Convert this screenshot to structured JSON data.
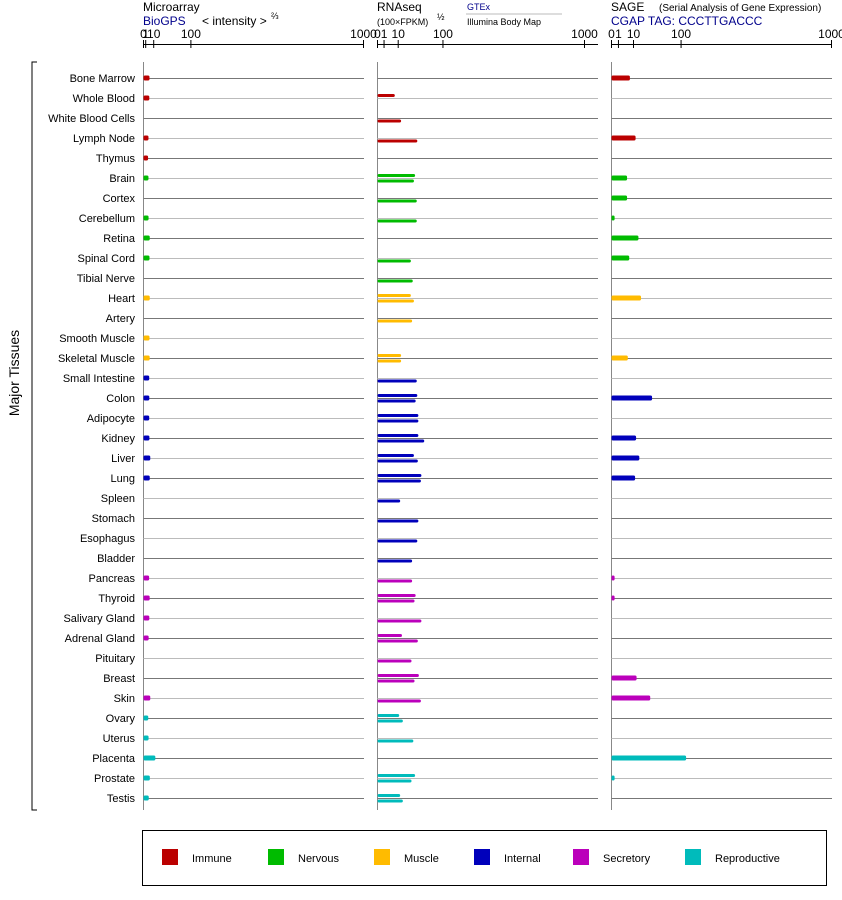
{
  "chart_data": {
    "type": "bar",
    "y_axis_label": "Major Tissues",
    "x_scale": "x^(2/3) (microarray) / x^(1/2) (RNAseq, SAGE)",
    "x_ticks": [
      "0",
      "1",
      "10",
      "100",
      "1000"
    ],
    "tissues": [
      "Bone Marrow",
      "Whole Blood",
      "White Blood Cells",
      "Lymph Node",
      "Thymus",
      "Brain",
      "Cortex",
      "Cerebellum",
      "Retina",
      "Spinal Cord",
      "Tibial Nerve",
      "Heart",
      "Artery",
      "Smooth Muscle",
      "Skeletal Muscle",
      "Small Intestine",
      "Colon",
      "Adipocyte",
      "Kidney",
      "Liver",
      "Lung",
      "Spleen",
      "Stomach",
      "Esophagus",
      "Bladder",
      "Pancreas",
      "Thyroid",
      "Salivary Gland",
      "Adrenal Gland",
      "Pituitary",
      "Breast",
      "Skin",
      "Ovary",
      "Uterus",
      "Placenta",
      "Prostate",
      "Testis"
    ],
    "categories": [
      "immune",
      "immune",
      "immune",
      "immune",
      "immune",
      "nervous",
      "nervous",
      "nervous",
      "nervous",
      "nervous",
      "nervous",
      "muscle",
      "muscle",
      "muscle",
      "muscle",
      "internal",
      "internal",
      "internal",
      "internal",
      "internal",
      "internal",
      "internal",
      "internal",
      "internal",
      "internal",
      "secretory",
      "secretory",
      "secretory",
      "secretory",
      "secretory",
      "secretory",
      "secretory",
      "reproductive",
      "reproductive",
      "reproductive",
      "reproductive",
      "reproductive"
    ],
    "colors": {
      "immune": "#bb0000",
      "nervous": "#00bb00",
      "muscle": "#ffbb00",
      "internal": "#0000bb",
      "secretory": "#bb00bb",
      "reproductive": "#00bbbb"
    },
    "panels": [
      {
        "id": "microarray",
        "title": "Microarray",
        "subtitle": "BioGPS",
        "scale_label": "< intensity >",
        "scale_exponent": "⅔",
        "scale": "pow23",
        "values": [
          [
            4.5
          ],
          [
            4.3
          ],
          [
            null
          ],
          [
            3.4
          ],
          [
            3.0
          ],
          [
            3.4
          ],
          [
            null
          ],
          [
            3.5
          ],
          [
            4.8
          ],
          [
            4.5
          ],
          [
            null
          ],
          [
            4.8
          ],
          [
            null
          ],
          [
            4.5
          ],
          [
            4.7
          ],
          [
            4.2
          ],
          [
            4.3
          ],
          [
            4.2
          ],
          [
            4.4
          ],
          [
            5.4
          ],
          [
            4.8
          ],
          [
            null
          ],
          [
            null
          ],
          [
            null
          ],
          [
            null
          ],
          [
            4.1
          ],
          [
            4.7
          ],
          [
            4.3
          ],
          [
            3.6
          ],
          [
            null
          ],
          [
            null
          ],
          [
            5.4
          ],
          [
            3.2
          ],
          [
            3.5
          ],
          [
            12.5
          ],
          [
            4.9
          ],
          [
            3.7
          ]
        ]
      },
      {
        "id": "rnaseq",
        "title": "RNAseq",
        "subtitle": "(100×FPKM)",
        "scale_exponent": "½",
        "scale": "sqrt",
        "legend_top": "GTEx",
        "legend_bottom": "Illumina Body Map",
        "values": [
          [
            null,
            null
          ],
          [
            7,
            null
          ],
          [
            null,
            13
          ],
          [
            null,
            37
          ],
          [
            null,
            null
          ],
          [
            33,
            31
          ],
          [
            null,
            36
          ],
          [
            null,
            36
          ],
          [
            null,
            null
          ],
          [
            null,
            26
          ],
          [
            null,
            29
          ],
          [
            26,
            31
          ],
          [
            null,
            28
          ],
          [
            null,
            null
          ],
          [
            13,
            13
          ],
          [
            null,
            36
          ],
          [
            37,
            34
          ],
          [
            39,
            39
          ],
          [
            39,
            51
          ],
          [
            31,
            38
          ],
          [
            45,
            44
          ],
          [
            null,
            12
          ],
          [
            null,
            39
          ],
          [
            null,
            37
          ],
          [
            null,
            28
          ],
          [
            null,
            28
          ],
          [
            34,
            32
          ],
          [
            null,
            45
          ],
          [
            14,
            38
          ],
          [
            null,
            27
          ],
          [
            40,
            32
          ],
          [
            null,
            44
          ],
          [
            11,
            15
          ],
          [
            null,
            30
          ],
          [
            null,
            null
          ],
          [
            33,
            27
          ],
          [
            12,
            15
          ]
        ]
      },
      {
        "id": "sage",
        "title": "SAGE",
        "subtitle_note": "(Serial Analysis of Gene Expression)",
        "tag_line": "CGAP TAG: CCCTTGACCC",
        "scale": "sqrt",
        "values": [
          [
            7
          ],
          [
            null
          ],
          [
            null
          ],
          [
            12
          ],
          [
            null
          ],
          [
            5
          ],
          [
            5
          ],
          [
            0.2
          ],
          [
            15
          ],
          [
            6.5
          ],
          [
            null
          ],
          [
            18
          ],
          [
            null
          ],
          [
            null
          ],
          [
            5.5
          ],
          [
            null
          ],
          [
            34
          ],
          [
            null
          ],
          [
            12.5
          ],
          [
            16
          ],
          [
            11.5
          ],
          [
            null
          ],
          [
            null
          ],
          [
            null
          ],
          [
            null
          ],
          [
            0.2
          ],
          [
            0.2
          ],
          [
            null
          ],
          [
            null
          ],
          [
            null
          ],
          [
            13
          ],
          [
            31
          ],
          [
            null
          ],
          [
            null
          ],
          [
            115
          ],
          [
            0.2
          ],
          [
            null
          ]
        ]
      }
    ],
    "legend": [
      {
        "label": "Immune",
        "color": "#bb0000"
      },
      {
        "label": "Nervous",
        "color": "#00bb00"
      },
      {
        "label": "Muscle",
        "color": "#ffbb00"
      },
      {
        "label": "Internal",
        "color": "#0000bb"
      },
      {
        "label": "Secretory",
        "color": "#bb00bb"
      },
      {
        "label": "Reproductive",
        "color": "#00bbbb"
      }
    ]
  }
}
